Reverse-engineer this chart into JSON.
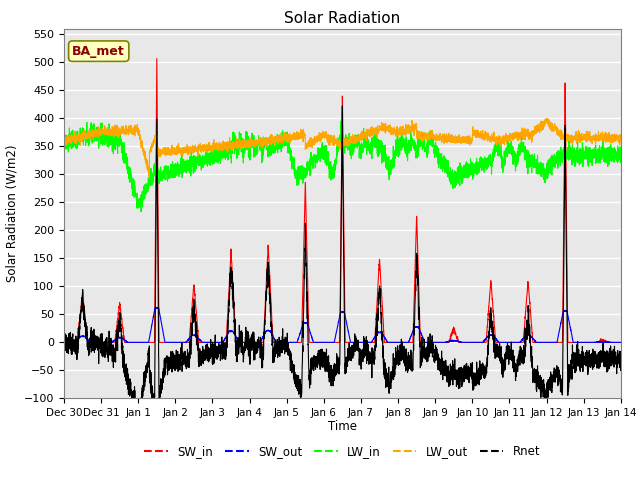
{
  "title": "Solar Radiation",
  "xlabel": "Time",
  "ylabel": "Solar Radiation (W/m2)",
  "ylim": [
    -100,
    560
  ],
  "yticks": [
    -100,
    -50,
    0,
    50,
    100,
    150,
    200,
    250,
    300,
    350,
    400,
    450,
    500,
    550
  ],
  "n_days": 15,
  "colors": {
    "SW_in": "red",
    "SW_out": "blue",
    "LW_in": "#00ff00",
    "LW_out": "orange",
    "Rnet": "black"
  },
  "annotation_text": "BA_met",
  "background_color": "#e8e8e8",
  "tick_label_dates": [
    "Dec 30",
    "Dec 31",
    "Jan 1",
    "Jan 2",
    "Jan 3",
    "Jan 4",
    "Jan 5",
    "Jan 6",
    "Jan 7",
    "Jan 8",
    "Jan 9",
    "Jan 10",
    "Jan 11",
    "Jan 12",
    "Jan 13",
    "Jan 14"
  ],
  "line_width": 0.8
}
